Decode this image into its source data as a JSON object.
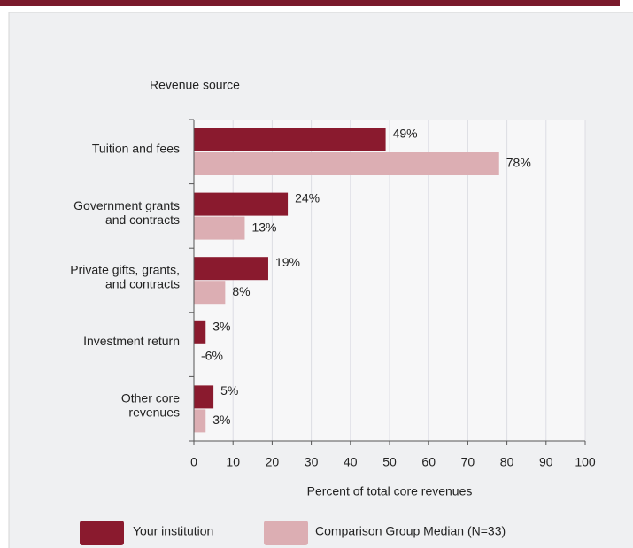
{
  "chart_data": {
    "type": "bar",
    "orientation": "horizontal",
    "title": "Revenue source",
    "x_label": "Percent of total core revenues",
    "categories": [
      [
        "Tuition and fees"
      ],
      [
        "Government grants",
        "and contracts"
      ],
      [
        "Private gifts, grants,",
        "and contracts"
      ],
      [
        "Investment return"
      ],
      [
        "Other core",
        "revenues"
      ]
    ],
    "series": [
      {
        "name": "Your institution",
        "color": "#8a1a2e",
        "values": [
          49,
          24,
          19,
          3,
          5
        ],
        "value_labels": [
          "49%",
          "24%",
          "19%",
          "3%",
          "5%"
        ]
      },
      {
        "name": "Comparison Group Median (N=33)",
        "color": "#dcaeb3",
        "values": [
          78,
          13,
          8,
          -6,
          3
        ],
        "value_labels": [
          "78%",
          "13%",
          "8%",
          "-6%",
          "3%"
        ]
      }
    ],
    "xlim": [
      0,
      100
    ],
    "xticks": [
      0,
      10,
      20,
      30,
      40,
      50,
      60,
      70,
      80,
      90,
      100
    ],
    "grid": true
  }
}
